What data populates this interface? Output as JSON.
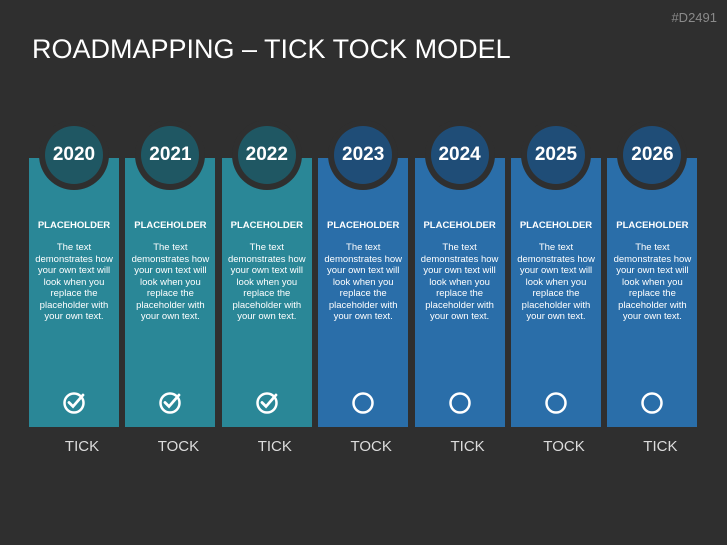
{
  "header": {
    "id": "#D2491",
    "title": "ROADMAPPING – TICK TOCK MODEL"
  },
  "columns": [
    {
      "year": "2020",
      "heading": "PLACEHOLDER",
      "text": "The text demonstrates how your own text will look when you replace the placeholder with your own text.",
      "done": true,
      "label": "TICK",
      "color": "#2a8797",
      "circle_color": "#1f5763"
    },
    {
      "year": "2021",
      "heading": "PLACEHOLDER",
      "text": "The text demonstrates how your own text will look when you replace the placeholder with your own text.",
      "done": true,
      "label": "TOCK",
      "color": "#2a8797",
      "circle_color": "#1f5763"
    },
    {
      "year": "2022",
      "heading": "PLACEHOLDER",
      "text": "The text demonstrates how your own text will look when you replace the placeholder with your own text.",
      "done": true,
      "label": "TICK",
      "color": "#2a8797",
      "circle_color": "#1f5763"
    },
    {
      "year": "2023",
      "heading": "PLACEHOLDER",
      "text": "The text demonstrates how your own text will look when you replace the placeholder with your own text.",
      "done": false,
      "label": "TOCK",
      "color": "#2a6ea9",
      "circle_color": "#1f4d77"
    },
    {
      "year": "2024",
      "heading": "PLACEHOLDER",
      "text": "The text demonstrates how your own text will look when you replace the placeholder with your own text.",
      "done": false,
      "label": "TICK",
      "color": "#2a6ea9",
      "circle_color": "#1f4d77"
    },
    {
      "year": "2025",
      "heading": "PLACEHOLDER",
      "text": "The text demonstrates how your own text will look when you replace the placeholder with your own text.",
      "done": false,
      "label": "TOCK",
      "color": "#2a6ea9",
      "circle_color": "#1f4d77"
    },
    {
      "year": "2026",
      "heading": "PLACEHOLDER",
      "text": "The text demonstrates how your own text will look when you replace the placeholder with your own text.",
      "done": false,
      "label": "TICK",
      "color": "#2a6ea9",
      "circle_color": "#1f4d77"
    }
  ]
}
